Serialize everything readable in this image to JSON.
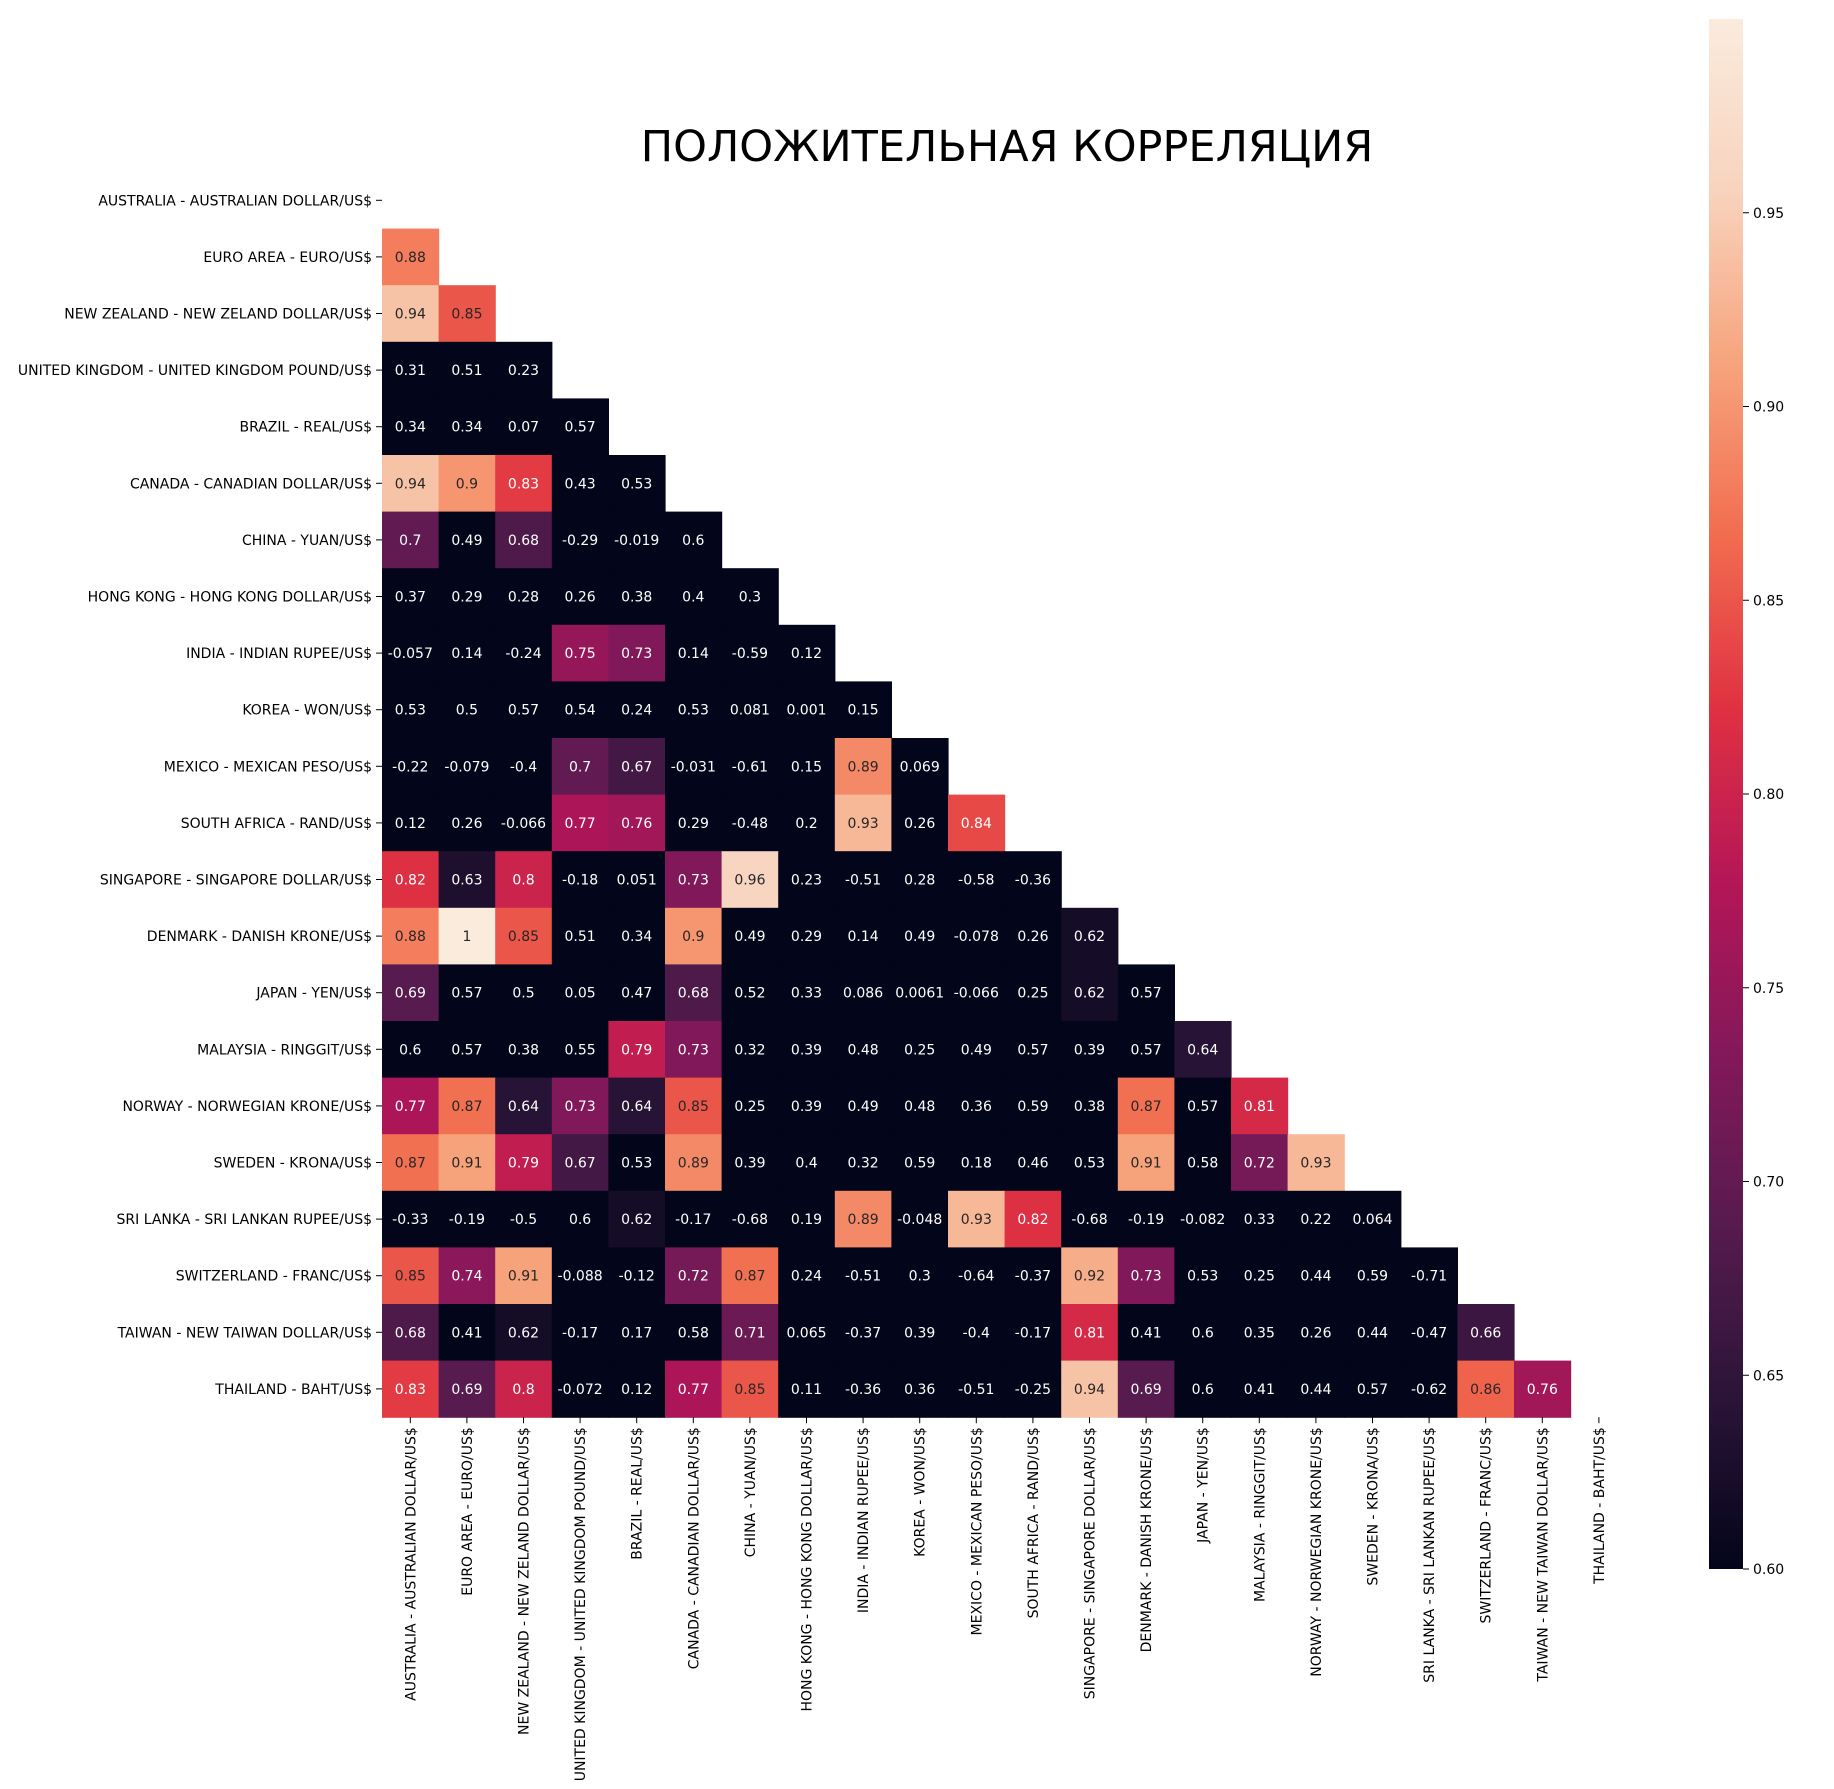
{
  "chart_data": {
    "type": "heatmap",
    "title": "ПОЛОЖИТЕЛЬНАЯ КОРРЕЛЯЦИЯ",
    "mask": "upper-triangle-including-diagonal",
    "labels": [
      "AUSTRALIA - AUSTRALIAN DOLLAR/US$",
      "EURO AREA - EURO/US$",
      "NEW ZEALAND - NEW ZELAND DOLLAR/US$",
      "UNITED KINGDOM - UNITED KINGDOM POUND/US$",
      "BRAZIL - REAL/US$",
      "CANADA - CANADIAN DOLLAR/US$",
      "CHINA - YUAN/US$",
      "HONG KONG - HONG KONG DOLLAR/US$",
      "INDIA - INDIAN RUPEE/US$",
      "KOREA - WON/US$",
      "MEXICO - MEXICAN PESO/US$",
      "SOUTH AFRICA - RAND/US$",
      "SINGAPORE - SINGAPORE DOLLAR/US$",
      "DENMARK - DANISH KRONE/US$",
      "JAPAN - YEN/US$",
      "MALAYSIA - RINGGIT/US$",
      "NORWAY - NORWEGIAN KRONE/US$",
      "SWEDEN - KRONA/US$",
      "SRI LANKA - SRI LANKAN RUPEE/US$",
      "SWITZERLAND - FRANC/US$",
      "TAIWAN - NEW TAIWAN DOLLAR/US$",
      "THAILAND - BAHT/US$"
    ],
    "values": [
      [],
      [
        "0.88"
      ],
      [
        "0.94",
        "0.85"
      ],
      [
        "0.31",
        "0.51",
        "0.23"
      ],
      [
        "0.34",
        "0.34",
        "0.07",
        "0.57"
      ],
      [
        "0.94",
        "0.9",
        "0.83",
        "0.43",
        "0.53"
      ],
      [
        "0.7",
        "0.49",
        "0.68",
        "-0.29",
        "-0.019",
        "0.6"
      ],
      [
        "0.37",
        "0.29",
        "0.28",
        "0.26",
        "0.38",
        "0.4",
        "0.3"
      ],
      [
        "-0.057",
        "0.14",
        "-0.24",
        "0.75",
        "0.73",
        "0.14",
        "-0.59",
        "0.12"
      ],
      [
        "0.53",
        "0.5",
        "0.57",
        "0.54",
        "0.24",
        "0.53",
        "0.081",
        "0.001",
        "0.15"
      ],
      [
        "-0.22",
        "-0.079",
        "-0.4",
        "0.7",
        "0.67",
        "-0.031",
        "-0.61",
        "0.15",
        "0.89",
        "0.069"
      ],
      [
        "0.12",
        "0.26",
        "-0.066",
        "0.77",
        "0.76",
        "0.29",
        "-0.48",
        "0.2",
        "0.93",
        "0.26",
        "0.84"
      ],
      [
        "0.82",
        "0.63",
        "0.8",
        "-0.18",
        "0.051",
        "0.73",
        "0.96",
        "0.23",
        "-0.51",
        "0.28",
        "-0.58",
        "-0.36"
      ],
      [
        "0.88",
        "1",
        "0.85",
        "0.51",
        "0.34",
        "0.9",
        "0.49",
        "0.29",
        "0.14",
        "0.49",
        "-0.078",
        "0.26",
        "0.62"
      ],
      [
        "0.69",
        "0.57",
        "0.5",
        "0.05",
        "0.47",
        "0.68",
        "0.52",
        "0.33",
        "0.086",
        "0.0061",
        "-0.066",
        "0.25",
        "0.62",
        "0.57"
      ],
      [
        "0.6",
        "0.57",
        "0.38",
        "0.55",
        "0.79",
        "0.73",
        "0.32",
        "0.39",
        "0.48",
        "0.25",
        "0.49",
        "0.57",
        "0.39",
        "0.57",
        "0.64"
      ],
      [
        "0.77",
        "0.87",
        "0.64",
        "0.73",
        "0.64",
        "0.85",
        "0.25",
        "0.39",
        "0.49",
        "0.48",
        "0.36",
        "0.59",
        "0.38",
        "0.87",
        "0.57",
        "0.81"
      ],
      [
        "0.87",
        "0.91",
        "0.79",
        "0.67",
        "0.53",
        "0.89",
        "0.39",
        "0.4",
        "0.32",
        "0.59",
        "0.18",
        "0.46",
        "0.53",
        "0.91",
        "0.58",
        "0.72",
        "0.93"
      ],
      [
        "-0.33",
        "-0.19",
        "-0.5",
        "0.6",
        "0.62",
        "-0.17",
        "-0.68",
        "0.19",
        "0.89",
        "-0.048",
        "0.93",
        "0.82",
        "-0.68",
        "-0.19",
        "-0.082",
        "0.33",
        "0.22",
        "0.064"
      ],
      [
        "0.85",
        "0.74",
        "0.91",
        "-0.088",
        "-0.12",
        "0.72",
        "0.87",
        "0.24",
        "-0.51",
        "0.3",
        "-0.64",
        "-0.37",
        "0.92",
        "0.73",
        "0.53",
        "0.25",
        "0.44",
        "0.59",
        "-0.71"
      ],
      [
        "0.68",
        "0.41",
        "0.62",
        "-0.17",
        "0.17",
        "0.58",
        "0.71",
        "0.065",
        "-0.37",
        "0.39",
        "-0.4",
        "-0.17",
        "0.81",
        "0.41",
        "0.6",
        "0.35",
        "0.26",
        "0.44",
        "-0.47",
        "0.66"
      ],
      [
        "0.83",
        "0.69",
        "0.8",
        "-0.072",
        "0.12",
        "0.77",
        "0.85",
        "0.11",
        "-0.36",
        "0.36",
        "-0.51",
        "-0.25",
        "0.94",
        "0.69",
        "0.6",
        "0.41",
        "0.44",
        "0.57",
        "-0.62",
        "0.86",
        "0.76"
      ]
    ],
    "colorbar": {
      "vmin": 0.6,
      "vmax": 1.0,
      "ticks": [
        "0.60",
        "0.65",
        "0.70",
        "0.75",
        "0.80",
        "0.85",
        "0.90",
        "0.95"
      ],
      "colormap": "rocket",
      "colors": [
        "#03051a",
        "#2b1438",
        "#571b4f",
        "#84185a",
        "#b51657",
        "#e03142",
        "#f26c4f",
        "#f6a47c",
        "#f8d3bd",
        "#faebdd"
      ]
    },
    "cell_annotation_colors": {
      "light": "#ffffff",
      "dark": "#262626"
    }
  }
}
